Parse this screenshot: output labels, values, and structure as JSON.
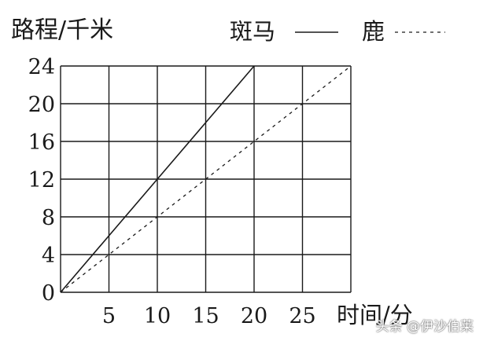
{
  "chart_data": {
    "type": "line",
    "title": "",
    "ylabel": "路程/千米",
    "xlabel": "时间/分",
    "xlim": [
      0,
      30
    ],
    "ylim": [
      0,
      24
    ],
    "x_ticks": [
      {
        "value": 5,
        "label": "5"
      },
      {
        "value": 10,
        "label": "10"
      },
      {
        "value": 15,
        "label": "15"
      },
      {
        "value": 20,
        "label": "20"
      },
      {
        "value": 25,
        "label": "25"
      }
    ],
    "y_ticks": [
      {
        "value": 0,
        "label": "0"
      },
      {
        "value": 4,
        "label": "4"
      },
      {
        "value": 8,
        "label": "8"
      },
      {
        "value": 12,
        "label": "12"
      },
      {
        "value": 16,
        "label": "16"
      },
      {
        "value": 20,
        "label": "20"
      },
      {
        "value": 24,
        "label": "24"
      }
    ],
    "grid": true,
    "legend_position": "top-right",
    "series": [
      {
        "name": "斑马",
        "style": "solid",
        "color": "#1a1a1a",
        "points": [
          [
            0,
            0
          ],
          [
            5,
            6
          ],
          [
            10,
            12
          ],
          [
            15,
            18
          ],
          [
            20,
            24
          ]
        ]
      },
      {
        "name": "鹿",
        "style": "dashed",
        "color": "#1a1a1a",
        "points": [
          [
            0,
            0
          ],
          [
            5,
            4
          ],
          [
            10,
            8
          ],
          [
            15,
            12
          ],
          [
            20,
            16
          ],
          [
            25,
            20
          ],
          [
            30,
            24
          ]
        ]
      }
    ]
  },
  "watermark": "头条 @伊沙伯莱"
}
